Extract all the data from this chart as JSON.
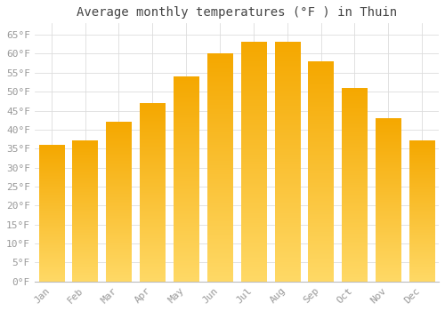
{
  "title": "Average monthly temperatures (°F ) in Thuin",
  "months": [
    "Jan",
    "Feb",
    "Mar",
    "Apr",
    "May",
    "Jun",
    "Jul",
    "Aug",
    "Sep",
    "Oct",
    "Nov",
    "Dec"
  ],
  "values": [
    36,
    37,
    42,
    47,
    54,
    60,
    63,
    63,
    58,
    51,
    43,
    37
  ],
  "bar_color_top": "#FFC733",
  "bar_color_bottom": "#F5A800",
  "background_color": "#FFFFFF",
  "grid_color": "#DDDDDD",
  "ylim": [
    0,
    68
  ],
  "yticks": [
    0,
    5,
    10,
    15,
    20,
    25,
    30,
    35,
    40,
    45,
    50,
    55,
    60,
    65
  ],
  "tick_label_color": "#999999",
  "title_fontsize": 10,
  "tick_fontsize": 8
}
